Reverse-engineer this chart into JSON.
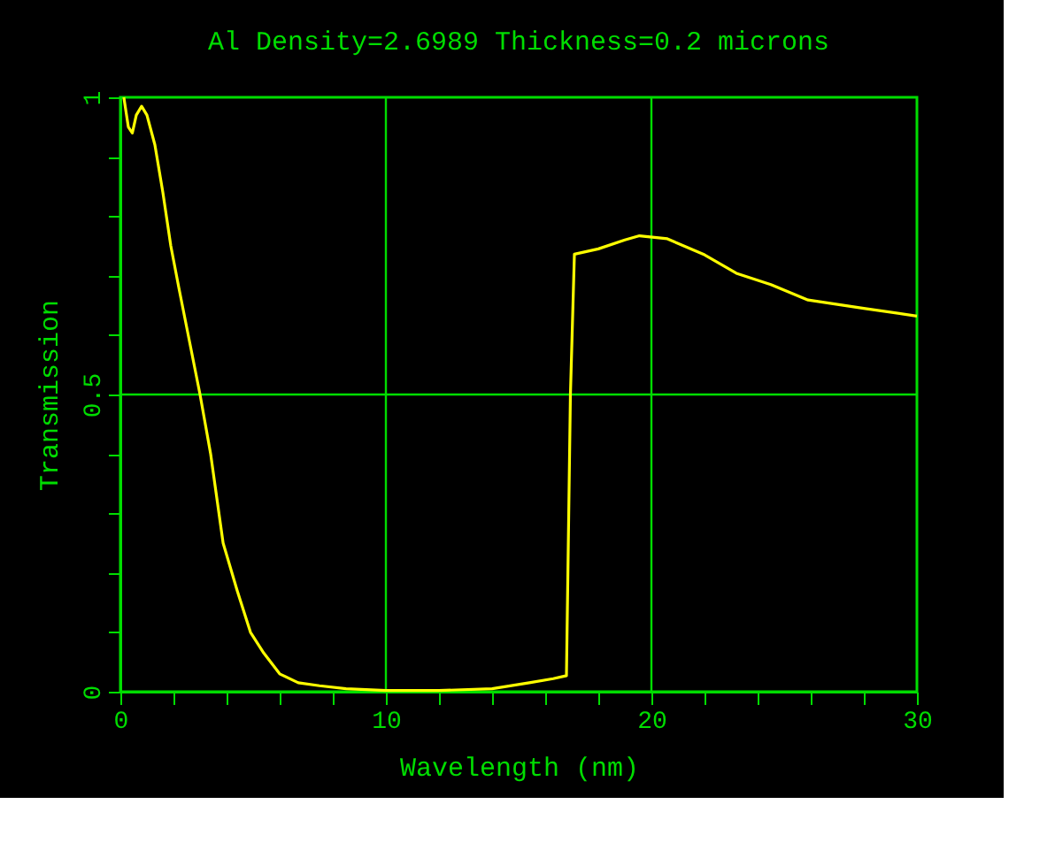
{
  "chart_data": {
    "type": "line",
    "title": "Al Density=2.6989 Thickness=0.2 microns",
    "xlabel": "Wavelength (nm)",
    "ylabel": "Transmission",
    "x": [
      0.13,
      0.3,
      0.45,
      0.6,
      0.8,
      1.0,
      1.3,
      1.6,
      1.9,
      2.2,
      2.6,
      3.0,
      3.4,
      3.87,
      4.4,
      4.9,
      5.4,
      6.0,
      6.7,
      7.5,
      8.5,
      10,
      12,
      14,
      15.4,
      16.3,
      16.8,
      16.95,
      17.1,
      18,
      19,
      19.55,
      20.6,
      22,
      23.2,
      24.5,
      25.9,
      28,
      30
    ],
    "series": [
      {
        "color": "#ffff00",
        "values": [
          1.0,
          0.95,
          0.94,
          0.97,
          0.985,
          0.97,
          0.92,
          0.84,
          0.75,
          0.68,
          0.59,
          0.5,
          0.4,
          0.25,
          0.17,
          0.1,
          0.065,
          0.03,
          0.015,
          0.01,
          0.005,
          0.002,
          0.002,
          0.005,
          0.015,
          0.022,
          0.027,
          0.5,
          0.736,
          0.745,
          0.76,
          0.767,
          0.762,
          0.735,
          0.704,
          0.685,
          0.659,
          0.645,
          0.632
        ]
      }
    ],
    "xlim": [
      0,
      30
    ],
    "ylim": [
      0,
      1
    ],
    "xticks": [
      0,
      {
        "value": 2,
        "label": null
      },
      {
        "value": 4,
        "label": null
      },
      {
        "value": 6,
        "label": null
      },
      {
        "value": 8,
        "label": null
      },
      10,
      {
        "value": 12,
        "label": null
      },
      {
        "value": 14,
        "label": null
      },
      {
        "value": 16,
        "label": null
      },
      {
        "value": 18,
        "label": null
      },
      20,
      {
        "value": 22,
        "label": null
      },
      {
        "value": 24,
        "label": null
      },
      {
        "value": 26,
        "label": null
      },
      {
        "value": 28,
        "label": null
      },
      30
    ],
    "yticks": [
      0,
      {
        "value": 0.1,
        "label": null
      },
      {
        "value": 0.2,
        "label": null
      },
      {
        "value": 0.3,
        "label": null
      },
      {
        "value": 0.4,
        "label": null
      },
      {
        "value": 0.5,
        "label": "0.5"
      },
      {
        "value": 0.6,
        "label": null
      },
      {
        "value": 0.7,
        "label": null
      },
      {
        "value": 0.8,
        "label": null
      },
      {
        "value": 0.9,
        "label": null
      },
      1
    ],
    "grid": true,
    "marker": "none",
    "line_style": "solid"
  }
}
